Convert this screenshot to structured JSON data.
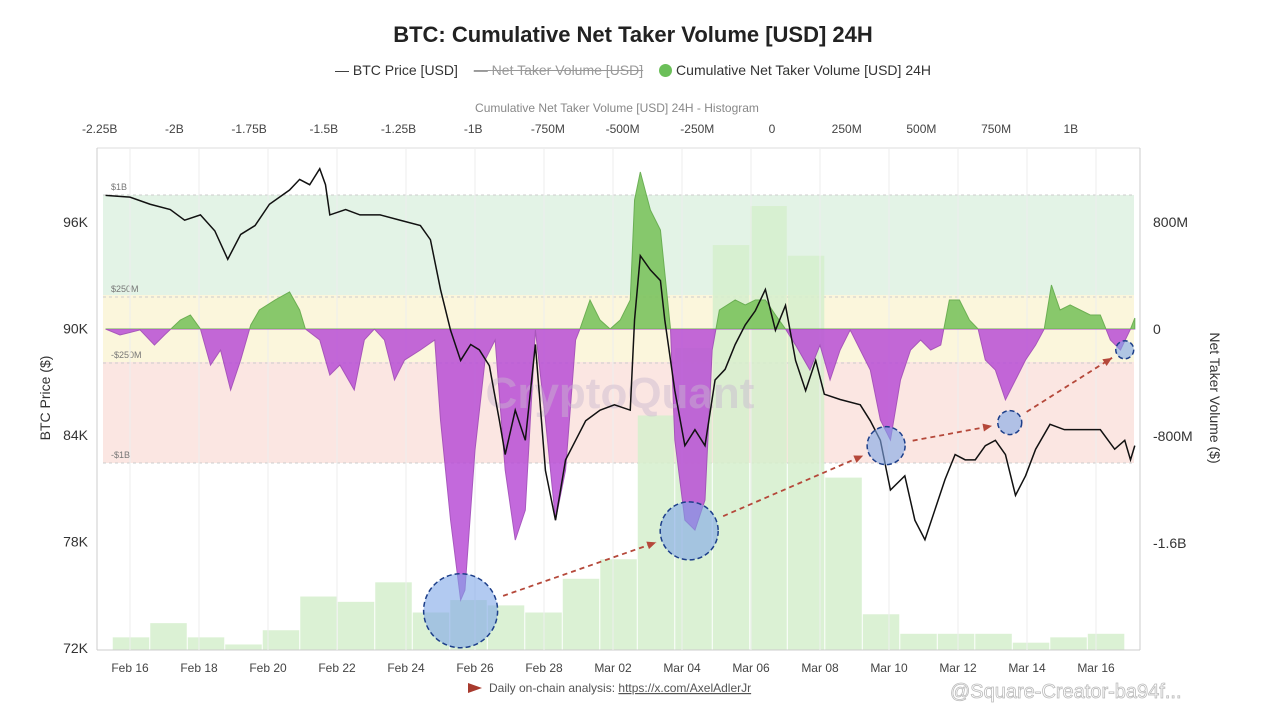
{
  "chart_data": {
    "type": "line",
    "title": "BTC: Cumulative Net Taker Volume [USD] 24H",
    "legend": [
      {
        "name": "BTC Price [USD]",
        "color": "#111111"
      },
      {
        "name": "Net Taker Volume [USD]",
        "color": "#aaaaaa",
        "disabled": true
      },
      {
        "name": "Cumulative Net Taker Volume [USD] 24H",
        "color": "#6bbf59"
      }
    ],
    "legend_placement": "top-center",
    "top_axis": {
      "label": "Cumulative Net Taker Volume [USD] 24H - Histogram",
      "ticks": [
        {
          "v": -2250,
          "t": "-2.25B"
        },
        {
          "v": -2000,
          "t": "-2B"
        },
        {
          "v": -1750,
          "t": "-1.75B"
        },
        {
          "v": -1500,
          "t": "-1.5B"
        },
        {
          "v": -1250,
          "t": "-1.25B"
        },
        {
          "v": -1000,
          "t": "-1B"
        },
        {
          "v": -750,
          "t": "-750M"
        },
        {
          "v": -500,
          "t": "-500M"
        },
        {
          "v": -250,
          "t": "-250M"
        },
        {
          "v": 0,
          "t": "0"
        },
        {
          "v": 250,
          "t": "250M"
        },
        {
          "v": 500,
          "t": "500M"
        },
        {
          "v": 750,
          "t": "750M"
        },
        {
          "v": 1000,
          "t": "1B"
        }
      ]
    },
    "left_axis": {
      "label": "BTC Price ($)",
      "ylim": [
        72,
        100
      ],
      "ticks": [
        {
          "v": 72,
          "t": "72K"
        },
        {
          "v": 78,
          "t": "78K"
        },
        {
          "v": 84,
          "t": "84K"
        },
        {
          "v": 90,
          "t": "90K"
        },
        {
          "v": 96,
          "t": "96K"
        }
      ]
    },
    "right_axis": {
      "label": "Net Taker Volume ($)",
      "ticks": [
        {
          "v": 800,
          "t": "800M"
        },
        {
          "v": 0,
          "t": "0"
        },
        {
          "v": -800,
          "t": "-800M"
        },
        {
          "v": -1600,
          "t": "-1.6B"
        }
      ]
    },
    "x_ticks": [
      "Feb 16",
      "Feb 18",
      "Feb 20",
      "Feb 22",
      "Feb 24",
      "Feb 26",
      "Feb 28",
      "Mar 02",
      "Mar 04",
      "Mar 06",
      "Mar 08",
      "Mar 10",
      "Mar 12",
      "Mar 14",
      "Mar 16"
    ],
    "zones": [
      {
        "label": "$1B",
        "color": "#e3f3e6"
      },
      {
        "label": "$250M",
        "color": "#fbf6dc"
      },
      {
        "label": "-$250M",
        "color": "#fbe6e2"
      },
      {
        "label": "-$1B",
        "color": ""
      }
    ],
    "colors": {
      "positive": "#7cc45f",
      "negative": "#b94fd6",
      "histogram": "#d5efcc",
      "price": "#111111",
      "circle": "#7fa7e8",
      "arrow": "#b5483a"
    },
    "histogram_bars": [
      72.6,
      73.4,
      72.6,
      72.2,
      73.0,
      74.9,
      74.6,
      75.7,
      74.0,
      74.7,
      74.4,
      74.0,
      75.9,
      77.0,
      85.1,
      88.9,
      94.7,
      96.9,
      94.1,
      81.6,
      73.9,
      72.8,
      72.8,
      72.8,
      72.3,
      72.6,
      72.8
    ],
    "btc_price": [
      [
        "Feb 15 07:00",
        97.5
      ],
      [
        "Feb 16 00:00",
        97.4
      ],
      [
        "Feb 16 14:00",
        97.0
      ],
      [
        "Feb 17 04:00",
        96.7
      ],
      [
        "Feb 17 14:00",
        96.1
      ],
      [
        "Feb 18 01:00",
        96.4
      ],
      [
        "Feb 18 11:00",
        95.5
      ],
      [
        "Feb 18 20:00",
        93.9
      ],
      [
        "Feb 19 05:00",
        95.3
      ],
      [
        "Feb 19 15:00",
        95.8
      ],
      [
        "Feb 20 01:00",
        97.0
      ],
      [
        "Feb 20 15:00",
        97.8
      ],
      [
        "Feb 20 22:00",
        98.4
      ],
      [
        "Feb 21 05:00",
        98.1
      ],
      [
        "Feb 21 12:00",
        99.0
      ],
      [
        "Feb 21 16:00",
        98.1
      ],
      [
        "Feb 21 19:00",
        96.4
      ],
      [
        "Feb 22 06:00",
        96.7
      ],
      [
        "Feb 22 16:00",
        96.4
      ],
      [
        "Feb 23 06:00",
        96.4
      ],
      [
        "Feb 23 20:00",
        96.1
      ],
      [
        "Feb 24 10:00",
        95.8
      ],
      [
        "Feb 24 17:00",
        95.0
      ],
      [
        "Feb 25 00:00",
        92.2
      ],
      [
        "Feb 25 07:00",
        89.9
      ],
      [
        "Feb 25 14:00",
        88.2
      ],
      [
        "Feb 25 21:00",
        89.1
      ],
      [
        "Feb 26 03:00",
        88.8
      ],
      [
        "Feb 26 10:00",
        87.9
      ],
      [
        "Feb 26 17:00",
        84.8
      ],
      [
        "Feb 26 21:00",
        82.9
      ],
      [
        "Feb 27 04:00",
        85.4
      ],
      [
        "Feb 27 11:00",
        83.7
      ],
      [
        "Feb 27 18:00",
        89.1
      ],
      [
        "Feb 28 01:00",
        82.0
      ],
      [
        "Feb 28 08:00",
        79.2
      ],
      [
        "Feb 28 15:00",
        82.6
      ],
      [
        "Feb 28 22:00",
        83.7
      ],
      [
        "Mar 01 05:00",
        84.8
      ],
      [
        "Mar 01 15:00",
        85.4
      ],
      [
        "Mar 02 01:00",
        85.7
      ],
      [
        "Mar 02 12:00",
        85.4
      ],
      [
        "Mar 02 15:00",
        90.5
      ],
      [
        "Mar 02 19:00",
        94.1
      ],
      [
        "Mar 03 02:00",
        93.3
      ],
      [
        "Mar 03 09:00",
        92.7
      ],
      [
        "Mar 03 12:00",
        90.5
      ],
      [
        "Mar 03 19:00",
        86.5
      ],
      [
        "Mar 04 02:00",
        83.4
      ],
      [
        "Mar 04 09:00",
        84.3
      ],
      [
        "Mar 04 16:00",
        83.4
      ],
      [
        "Mar 04 23:00",
        87.1
      ],
      [
        "Mar 05 06:00",
        87.7
      ],
      [
        "Mar 05 13:00",
        89.1
      ],
      [
        "Mar 05 20:00",
        90.2
      ],
      [
        "Mar 06 03:00",
        91.0
      ],
      [
        "Mar 06 10:00",
        92.2
      ],
      [
        "Mar 06 17:00",
        89.9
      ],
      [
        "Mar 07 00:00",
        91.3
      ],
      [
        "Mar 07 07:00",
        88.2
      ],
      [
        "Mar 07 14:00",
        86.5
      ],
      [
        "Mar 07 21:00",
        88.2
      ],
      [
        "Mar 08 03:00",
        86.3
      ],
      [
        "Mar 08 14:00",
        86.0
      ],
      [
        "Mar 09 04:00",
        85.7
      ],
      [
        "Mar 09 11:00",
        84.8
      ],
      [
        "Mar 09 18:00",
        83.7
      ],
      [
        "Mar 10 01:00",
        80.9
      ],
      [
        "Mar 10 11:00",
        81.7
      ],
      [
        "Mar 10 18:00",
        79.2
      ],
      [
        "Mar 11 01:00",
        78.1
      ],
      [
        "Mar 11 08:00",
        79.8
      ],
      [
        "Mar 11 15:00",
        81.5
      ],
      [
        "Mar 11 22:00",
        82.9
      ],
      [
        "Mar 12 05:00",
        82.6
      ],
      [
        "Mar 12 12:00",
        82.6
      ],
      [
        "Mar 12 19:00",
        83.4
      ],
      [
        "Mar 13 02:00",
        83.7
      ],
      [
        "Mar 13 09:00",
        82.9
      ],
      [
        "Mar 13 16:00",
        80.6
      ],
      [
        "Mar 13 23:00",
        81.7
      ],
      [
        "Mar 14 06:00",
        83.2
      ],
      [
        "Mar 14 16:00",
        84.6
      ],
      [
        "Mar 15 02:00",
        84.3
      ],
      [
        "Mar 15 13:00",
        84.3
      ],
      [
        "Mar 16 03:00",
        84.3
      ],
      [
        "Mar 16 13:00",
        83.2
      ],
      [
        "Mar 16 20:00",
        83.7
      ],
      [
        "Mar 17 00:00",
        82.6
      ],
      [
        "Mar 17 03:00",
        83.4
      ]
    ],
    "cumulative_net_taker_volume_musd": [
      [
        "Feb 15 07:00",
        0
      ],
      [
        "Feb 15 17:00",
        -45
      ],
      [
        "Feb 16 07:00",
        -7
      ],
      [
        "Feb 16 17:00",
        -120
      ],
      [
        "Feb 17 00:00",
        -45
      ],
      [
        "Feb 17 11:00",
        67
      ],
      [
        "Feb 17 18:00",
        105
      ],
      [
        "Feb 18 01:00",
        0
      ],
      [
        "Feb 18 08:00",
        -270
      ],
      [
        "Feb 18 15:00",
        -157
      ],
      [
        "Feb 18 22:00",
        -456
      ],
      [
        "Feb 19 05:00",
        -232
      ],
      [
        "Feb 19 12:00",
        30
      ],
      [
        "Feb 19 18:00",
        142
      ],
      [
        "Feb 20 05:00",
        217
      ],
      [
        "Feb 20 15:00",
        277
      ],
      [
        "Feb 20 22:00",
        142
      ],
      [
        "Feb 21 02:00",
        0
      ],
      [
        "Feb 21 12:00",
        -82
      ],
      [
        "Feb 21 19:00",
        -344
      ],
      [
        "Feb 22 02:00",
        -269
      ],
      [
        "Feb 22 12:00",
        -456
      ],
      [
        "Feb 22 19:00",
        -82
      ],
      [
        "Feb 23 02:00",
        0
      ],
      [
        "Feb 23 09:00",
        -82
      ],
      [
        "Feb 23 16:00",
        -381
      ],
      [
        "Feb 23 23:00",
        -232
      ],
      [
        "Feb 24 10:00",
        -157
      ],
      [
        "Feb 24 20:00",
        -82
      ],
      [
        "Feb 25 00:00",
        -680
      ],
      [
        "Feb 25 07:00",
        -1429
      ],
      [
        "Feb 25 14:00",
        -2027
      ],
      [
        "Feb 25 17:00",
        -1952
      ],
      [
        "Feb 26 00:00",
        -905
      ],
      [
        "Feb 26 07:00",
        -232
      ],
      [
        "Feb 26 14:00",
        -82
      ],
      [
        "Feb 26 21:00",
        -1055
      ],
      [
        "Feb 27 04:00",
        -1578
      ],
      [
        "Feb 27 11:00",
        -1354
      ],
      [
        "Feb 27 18:00",
        -7
      ],
      [
        "Feb 28 01:00",
        -680
      ],
      [
        "Feb 28 08:00",
        -1429
      ],
      [
        "Feb 28 15:00",
        -1055
      ],
      [
        "Feb 28 22:00",
        -82
      ],
      [
        "Mar 01 01:00",
        0
      ],
      [
        "Mar 01 08:00",
        217
      ],
      [
        "Mar 01 15:00",
        67
      ],
      [
        "Mar 01 22:00",
        0
      ],
      [
        "Mar 02 05:00",
        67
      ],
      [
        "Mar 02 12:00",
        217
      ],
      [
        "Mar 02 15:00",
        965
      ],
      [
        "Mar 02 19:00",
        1174
      ],
      [
        "Mar 03 02:00",
        890
      ],
      [
        "Mar 03 09:00",
        740
      ],
      [
        "Mar 03 16:00",
        0
      ],
      [
        "Mar 03 19:00",
        -830
      ],
      [
        "Mar 04 02:00",
        -1429
      ],
      [
        "Mar 04 09:00",
        -1503
      ],
      [
        "Mar 04 16:00",
        -1279
      ],
      [
        "Mar 04 21:00",
        -157
      ],
      [
        "Mar 05 02:00",
        142
      ],
      [
        "Mar 05 13:00",
        217
      ],
      [
        "Mar 05 20:00",
        180
      ],
      [
        "Mar 06 03:00",
        217
      ],
      [
        "Mar 06 10:00",
        217
      ],
      [
        "Mar 06 17:00",
        105
      ],
      [
        "Mar 07 00:00",
        0
      ],
      [
        "Mar 07 07:00",
        -120
      ],
      [
        "Mar 07 17:00",
        -307
      ],
      [
        "Mar 08 00:00",
        -120
      ],
      [
        "Mar 08 07:00",
        -381
      ],
      [
        "Mar 08 14:00",
        -157
      ],
      [
        "Mar 08 21:00",
        -7
      ],
      [
        "Mar 09 04:00",
        -157
      ],
      [
        "Mar 09 11:00",
        -307
      ],
      [
        "Mar 09 18:00",
        -680
      ],
      [
        "Mar 10 01:00",
        -830
      ],
      [
        "Mar 10 08:00",
        -381
      ],
      [
        "Mar 10 15:00",
        -157
      ],
      [
        "Mar 10 22:00",
        -82
      ],
      [
        "Mar 11 05:00",
        -157
      ],
      [
        "Mar 11 12:00",
        -120
      ],
      [
        "Mar 11 18:00",
        217
      ],
      [
        "Mar 12 01:00",
        217
      ],
      [
        "Mar 12 08:00",
        67
      ],
      [
        "Mar 12 14:00",
        0
      ],
      [
        "Mar 12 19:00",
        -232
      ],
      [
        "Mar 13 02:00",
        -307
      ],
      [
        "Mar 13 09:00",
        -530
      ],
      [
        "Mar 13 16:00",
        -381
      ],
      [
        "Mar 13 23:00",
        -232
      ],
      [
        "Mar 14 06:00",
        -120
      ],
      [
        "Mar 14 12:00",
        0
      ],
      [
        "Mar 14 17:00",
        329
      ],
      [
        "Mar 14 23:00",
        142
      ],
      [
        "Mar 15 06:00",
        180
      ],
      [
        "Mar 15 13:00",
        142
      ],
      [
        "Mar 15 20:00",
        105
      ],
      [
        "Mar 16 03:00",
        105
      ],
      [
        "Mar 16 10:00",
        -82
      ],
      [
        "Mar 16 17:00",
        -157
      ],
      [
        "Mar 17 00:00",
        0
      ],
      [
        "Mar 17 03:00",
        82
      ]
    ],
    "annotations": {
      "circles": [
        [
          "Feb 25 14:00",
          74.1
        ],
        [
          "Mar 04 05:00",
          78.6
        ],
        [
          "Mar 09 22:00",
          83.4
        ],
        [
          "Mar 13 12:00",
          84.7
        ],
        [
          "Mar 16 20:00",
          88.8
        ]
      ]
    },
    "watermark": "CryptoQuant",
    "footer": {
      "prefix": "Daily on-chain analysis: ",
      "link": "https://x.com/AxelAdlerJr"
    },
    "corner_watermark": "@Square-Creator-ba94f..."
  }
}
